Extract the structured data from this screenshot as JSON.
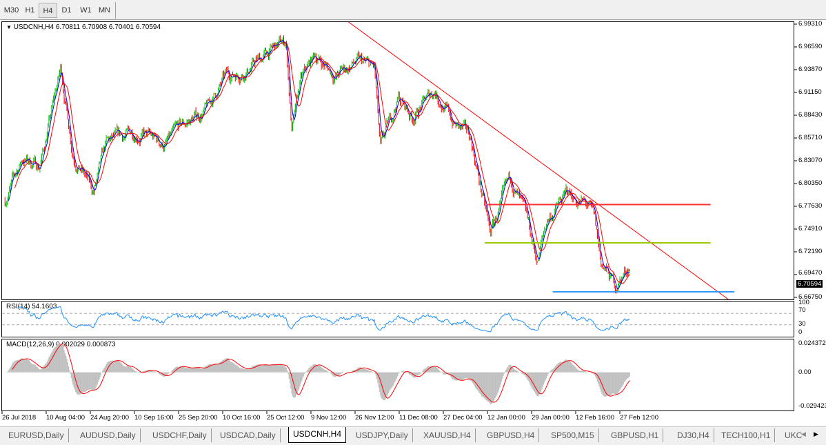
{
  "timeframes": [
    {
      "label": "M30",
      "active": false
    },
    {
      "label": "H1",
      "active": false
    },
    {
      "label": "H4",
      "active": true
    },
    {
      "label": "D1",
      "active": false
    },
    {
      "label": "W1",
      "active": false
    },
    {
      "label": "MN",
      "active": false
    }
  ],
  "price_panel": {
    "collapse_icon": "triangle-down-icon",
    "header": "USDCNH,H4  6.70811 6.70908 6.70401 6.70594",
    "current_price": "6.70594",
    "y_ticks": [
      "6.99310",
      "6.96590",
      "6.93870",
      "6.91150",
      "6.88430",
      "6.85710",
      "6.83070",
      "6.80350",
      "6.77630",
      "6.74910",
      "6.72190",
      "6.69470",
      "6.66750"
    ]
  },
  "rsi_panel": {
    "header": "RSI(14) 54.1603",
    "y_ticks": [
      "100",
      "70",
      "30",
      "0"
    ],
    "levels": [
      70,
      30
    ]
  },
  "macd_panel": {
    "header": "MACD(12,26,9) 0.002029 0.000873",
    "y_ticks": [
      "0.024372",
      "0.00",
      "-0.029423"
    ],
    "range": [
      -0.029423,
      0.024372
    ]
  },
  "x_ticks": [
    "26 Jul 2018",
    "10 Aug 04:00",
    "24 Aug 20:00",
    "10 Sep 16:00",
    "25 Sep 20:00",
    "10 Oct 16:00",
    "25 Oct 12:00",
    "9 Nov 12:00",
    "26 Nov 12:00",
    "11 Dec 08:00",
    "27 Dec 04:00",
    "12 Jan 00:00",
    "29 Jan 00:00",
    "12 Feb 16:00",
    "27 Feb 12:00"
  ],
  "chart_data": {
    "type": "candlestick",
    "symbol": "USDCNH",
    "timeframe": "H4",
    "ylim": [
      6.6675,
      6.9931
    ],
    "colors": {
      "up": "#00c000",
      "down": "#ff0000",
      "ma_fast": "#0000ff",
      "ma_slow": "#ff0000",
      "rsi": "#1e90ff",
      "macd_hist": "#c0c0c0",
      "macd_signal": "#ff0000",
      "trendline": "#ff0000",
      "resistance": "#ff3030",
      "mid_support": "#99cc00",
      "support": "#3399ff"
    },
    "close_path": [
      [
        "2018-07-27",
        6.7834
      ],
      [
        "2018-08-02",
        6.8327
      ],
      [
        "2018-08-08",
        6.8245
      ],
      [
        "2018-08-15",
        6.9396
      ],
      [
        "2018-08-19",
        6.841
      ],
      [
        "2018-08-26",
        6.7916
      ],
      [
        "2018-08-31",
        6.8492
      ],
      [
        "2018-09-11",
        6.8656
      ],
      [
        "2018-09-21",
        6.8492
      ],
      [
        "2018-09-28",
        6.8739
      ],
      [
        "2018-10-05",
        6.8903
      ],
      [
        "2018-10-12",
        6.9314
      ],
      [
        "2018-10-19",
        6.9396
      ],
      [
        "2018-10-28",
        6.9643
      ],
      [
        "2018-11-01",
        6.9725
      ],
      [
        "2018-11-03",
        6.8656
      ],
      [
        "2018-11-06",
        6.9232
      ],
      [
        "2018-11-11",
        6.9561
      ],
      [
        "2018-11-19",
        6.9314
      ],
      [
        "2018-11-27",
        6.9479
      ],
      [
        "2018-12-03",
        6.9396
      ],
      [
        "2018-12-05",
        6.841
      ],
      [
        "2018-12-11",
        6.9067
      ],
      [
        "2018-12-16",
        6.8821
      ],
      [
        "2018-12-24",
        6.915
      ],
      [
        "2018-12-31",
        6.8739
      ],
      [
        "2019-01-06",
        6.8574
      ],
      [
        "2019-01-10",
        6.7916
      ],
      [
        "2019-01-13",
        6.7423
      ],
      [
        "2019-01-17",
        6.7752
      ],
      [
        "2019-01-21",
        6.8081
      ],
      [
        "2019-01-27",
        6.7587
      ],
      [
        "2019-01-31",
        6.7094
      ],
      [
        "2019-02-03",
        6.7587
      ],
      [
        "2019-02-10",
        6.7916
      ],
      [
        "2019-02-17",
        6.7752
      ],
      [
        "2019-02-19",
        6.7587
      ],
      [
        "2019-02-21",
        6.7094
      ],
      [
        "2019-02-26",
        6.6806
      ],
      [
        "2019-03-02",
        6.7012
      ],
      [
        "2019-03-03",
        6.70594
      ]
    ],
    "last_bar": {
      "open": 6.70811,
      "high": 6.70908,
      "low": 6.70401,
      "close": 6.70594
    },
    "drawings": [
      {
        "kind": "trendline",
        "from": [
          "2018-11-24",
          6.9956
        ],
        "to": [
          "2019-04-05",
          6.665
        ]
      },
      {
        "kind": "horizontal",
        "price": 6.778,
        "from": "2019-01-12",
        "to": "2019-03-30"
      },
      {
        "kind": "horizontal",
        "price": 6.7324,
        "from": "2019-01-11",
        "to": "2019-03-30"
      },
      {
        "kind": "horizontal",
        "price": 6.674,
        "from": "2019-02-05",
        "to": "2019-04-07"
      }
    ]
  },
  "symbol_tabs": [
    {
      "label": "EURUSD,Daily",
      "active": false
    },
    {
      "label": "AUDUSD,Daily",
      "active": false
    },
    {
      "label": "USDCHF,Daily",
      "active": false
    },
    {
      "label": "USDCAD,Daily",
      "active": false
    },
    {
      "label": "USDCNH,H4",
      "active": true
    },
    {
      "label": "USDJPY,Daily",
      "active": false
    },
    {
      "label": "XAUUSD,H4",
      "active": false
    },
    {
      "label": "GBPUSD,H4",
      "active": false
    },
    {
      "label": "SP500,M15",
      "active": false
    },
    {
      "label": "GBPUSD,H1",
      "active": false
    },
    {
      "label": "DJ30,H4",
      "active": false
    },
    {
      "label": "TECH100,H1",
      "active": false
    },
    {
      "label": "UKC",
      "active": false
    }
  ],
  "tab_scroll": {
    "left_icon": "chevron-left-icon",
    "right_icon": "chevron-right-icon"
  }
}
